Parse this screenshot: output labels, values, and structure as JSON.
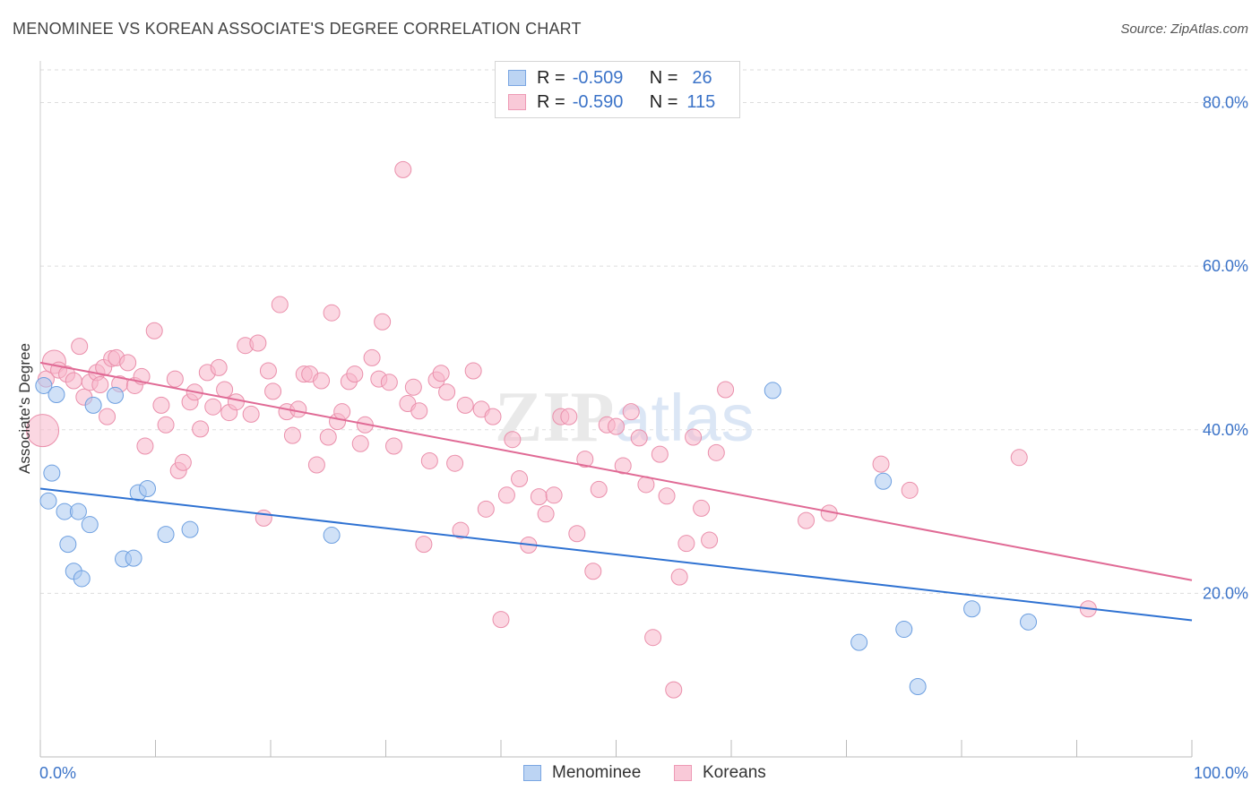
{
  "title": "MENOMINEE VS KOREAN ASSOCIATE'S DEGREE CORRELATION CHART",
  "source": "Source: ZipAtlas.com",
  "watermark": "ZIPatlas",
  "colors": {
    "blue_fill": "#a9c8f0",
    "blue_stroke": "#6d9fe0",
    "blue_line": "#2f72d2",
    "pink_fill": "#f7b6cb",
    "pink_stroke": "#ea8fab",
    "pink_line": "#e06a95",
    "tick_label": "#3b73c8",
    "grid": "#dddddd"
  },
  "legend_top": [
    {
      "r_label": "R =",
      "r_value": "-0.509",
      "n_label": "N =",
      "n_value": "26"
    },
    {
      "r_label": "R =",
      "r_value": "-0.590",
      "n_label": "N =",
      "n_value": "115"
    }
  ],
  "legend_bottom": [
    "Menominee",
    "Koreans"
  ],
  "chart_data": {
    "type": "scatter",
    "xlabel": "",
    "ylabel": "Associate's Degree",
    "xlim": [
      0,
      100
    ],
    "ylim": [
      0,
      84
    ],
    "x_tick_labels": [
      "0.0%",
      "100.0%"
    ],
    "y_ticks": [
      20,
      40,
      60,
      80
    ],
    "y_tick_labels": [
      "20.0%",
      "40.0%",
      "60.0%",
      "80.0%"
    ],
    "grid": true,
    "series": [
      {
        "name": "Menominee",
        "color": "#a9c8f0",
        "trend": [
          [
            0,
            32.8
          ],
          [
            100,
            16.7
          ]
        ],
        "points": [
          [
            0.3,
            45.4
          ],
          [
            1.0,
            34.7
          ],
          [
            1.4,
            44.3
          ],
          [
            0.7,
            31.3
          ],
          [
            2.1,
            30.0
          ],
          [
            3.3,
            30.0
          ],
          [
            2.4,
            26.0
          ],
          [
            4.3,
            28.4
          ],
          [
            2.9,
            22.7
          ],
          [
            3.6,
            21.8
          ],
          [
            4.6,
            43.0
          ],
          [
            6.5,
            44.2
          ],
          [
            7.2,
            24.2
          ],
          [
            8.1,
            24.3
          ],
          [
            8.5,
            32.3
          ],
          [
            9.3,
            32.8
          ],
          [
            10.9,
            27.2
          ],
          [
            13.0,
            27.8
          ],
          [
            25.3,
            27.1
          ],
          [
            63.6,
            44.8
          ],
          [
            73.2,
            33.7
          ],
          [
            71.1,
            14.0
          ],
          [
            75.0,
            15.6
          ],
          [
            76.2,
            8.6
          ],
          [
            80.9,
            18.1
          ],
          [
            85.8,
            16.5
          ]
        ]
      },
      {
        "name": "Koreans",
        "color": "#f7b6cb",
        "trend": [
          [
            0,
            48.2
          ],
          [
            100,
            21.6
          ]
        ],
        "points": [
          [
            0.5,
            46.2
          ],
          [
            1.2,
            48.3
          ],
          [
            1.6,
            47.3
          ],
          [
            2.3,
            46.8
          ],
          [
            3.4,
            50.2
          ],
          [
            3.8,
            44.0
          ],
          [
            4.3,
            45.8
          ],
          [
            4.9,
            47.0
          ],
          [
            5.5,
            47.6
          ],
          [
            5.2,
            45.5
          ],
          [
            6.2,
            48.7
          ],
          [
            6.6,
            48.8
          ],
          [
            6.9,
            45.6
          ],
          [
            7.6,
            48.2
          ],
          [
            8.2,
            45.4
          ],
          [
            8.8,
            46.5
          ],
          [
            9.1,
            38.0
          ],
          [
            9.9,
            52.1
          ],
          [
            10.5,
            43.0
          ],
          [
            10.9,
            40.6
          ],
          [
            11.7,
            46.2
          ],
          [
            12.0,
            35.0
          ],
          [
            12.4,
            36.0
          ],
          [
            13.0,
            43.4
          ],
          [
            13.4,
            44.6
          ],
          [
            13.9,
            40.1
          ],
          [
            14.5,
            47.0
          ],
          [
            15.0,
            42.8
          ],
          [
            15.5,
            47.6
          ],
          [
            16.0,
            44.9
          ],
          [
            16.4,
            42.1
          ],
          [
            17.0,
            43.4
          ],
          [
            17.8,
            50.3
          ],
          [
            18.3,
            41.9
          ],
          [
            18.9,
            50.6
          ],
          [
            19.4,
            29.2
          ],
          [
            19.8,
            47.2
          ],
          [
            20.2,
            44.7
          ],
          [
            20.8,
            55.3
          ],
          [
            21.4,
            42.2
          ],
          [
            21.9,
            39.3
          ],
          [
            22.4,
            42.5
          ],
          [
            22.9,
            46.8
          ],
          [
            23.4,
            46.8
          ],
          [
            24.0,
            35.7
          ],
          [
            24.4,
            46.0
          ],
          [
            25.0,
            39.1
          ],
          [
            25.3,
            54.3
          ],
          [
            25.8,
            41.0
          ],
          [
            26.2,
            42.2
          ],
          [
            26.8,
            45.9
          ],
          [
            27.3,
            46.8
          ],
          [
            27.8,
            38.3
          ],
          [
            28.2,
            40.6
          ],
          [
            28.8,
            48.8
          ],
          [
            29.4,
            46.2
          ],
          [
            29.7,
            53.2
          ],
          [
            30.3,
            45.8
          ],
          [
            30.7,
            38.0
          ],
          [
            31.5,
            71.8
          ],
          [
            31.9,
            43.2
          ],
          [
            32.4,
            45.2
          ],
          [
            32.9,
            42.3
          ],
          [
            33.3,
            26.0
          ],
          [
            33.8,
            36.2
          ],
          [
            34.4,
            46.1
          ],
          [
            34.8,
            46.9
          ],
          [
            35.3,
            44.6
          ],
          [
            36.0,
            35.9
          ],
          [
            36.5,
            27.7
          ],
          [
            36.9,
            43.0
          ],
          [
            37.6,
            47.2
          ],
          [
            38.3,
            42.5
          ],
          [
            38.7,
            30.3
          ],
          [
            39.3,
            41.6
          ],
          [
            40.0,
            16.8
          ],
          [
            40.5,
            32.0
          ],
          [
            41.0,
            38.8
          ],
          [
            41.6,
            34.0
          ],
          [
            42.4,
            25.9
          ],
          [
            43.3,
            31.8
          ],
          [
            43.9,
            29.7
          ],
          [
            44.6,
            32.0
          ],
          [
            45.2,
            41.6
          ],
          [
            45.9,
            41.6
          ],
          [
            46.6,
            27.3
          ],
          [
            47.3,
            36.4
          ],
          [
            48.0,
            22.7
          ],
          [
            48.5,
            32.7
          ],
          [
            49.2,
            40.6
          ],
          [
            50.0,
            40.4
          ],
          [
            50.6,
            35.6
          ],
          [
            51.3,
            42.2
          ],
          [
            52.0,
            39.0
          ],
          [
            52.6,
            33.3
          ],
          [
            53.2,
            14.6
          ],
          [
            53.8,
            37.0
          ],
          [
            54.4,
            31.9
          ],
          [
            55.0,
            8.2
          ],
          [
            55.5,
            22.0
          ],
          [
            56.1,
            26.1
          ],
          [
            56.7,
            39.1
          ],
          [
            57.4,
            30.4
          ],
          [
            58.1,
            26.5
          ],
          [
            58.7,
            37.2
          ],
          [
            59.5,
            44.9
          ],
          [
            66.5,
            28.9
          ],
          [
            68.5,
            29.8
          ],
          [
            73.0,
            35.8
          ],
          [
            75.5,
            32.6
          ],
          [
            85.0,
            36.6
          ],
          [
            91.0,
            18.1
          ],
          [
            0.2,
            39.9
          ],
          [
            5.8,
            41.6
          ],
          [
            2.9,
            46.0
          ]
        ]
      }
    ]
  }
}
